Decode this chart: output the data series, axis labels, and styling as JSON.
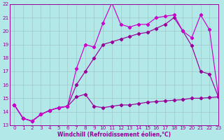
{
  "xlabel": "Windchill (Refroidissement éolien,°C)",
  "xlim": [
    -0.5,
    23
  ],
  "ylim": [
    13,
    22
  ],
  "yticks": [
    13,
    14,
    15,
    16,
    17,
    18,
    19,
    20,
    21,
    22
  ],
  "xticks": [
    0,
    1,
    2,
    3,
    4,
    5,
    6,
    7,
    8,
    9,
    10,
    11,
    12,
    13,
    14,
    15,
    16,
    17,
    18,
    19,
    20,
    21,
    22,
    23
  ],
  "bg_color": "#b2e8e8",
  "grid_color": "#a0c8c8",
  "line_color": "#990099",
  "line_color_bright": "#cc00cc",
  "x": [
    0,
    1,
    2,
    3,
    4,
    5,
    6,
    7,
    8,
    9,
    10,
    11,
    12,
    13,
    14,
    15,
    16,
    17,
    18,
    19,
    20,
    21,
    22,
    23
  ],
  "curve_top": [
    14.5,
    13.5,
    13.3,
    13.8,
    14.1,
    14.3,
    14.4,
    17.2,
    19.0,
    18.8,
    20.6,
    22.1,
    20.5,
    20.3,
    20.5,
    20.5,
    21.0,
    21.1,
    21.2,
    20.0,
    19.5,
    21.2,
    20.1,
    15.2
  ],
  "curve_mid": [
    14.5,
    13.5,
    13.3,
    13.8,
    14.1,
    14.3,
    14.4,
    16.0,
    17.0,
    18.0,
    19.0,
    19.2,
    19.4,
    19.6,
    19.8,
    19.9,
    20.2,
    20.5,
    21.0,
    20.0,
    18.9,
    17.0,
    16.8,
    15.1
  ],
  "curve_bot": [
    14.5,
    13.5,
    13.3,
    13.8,
    14.1,
    14.3,
    14.4,
    15.1,
    15.3,
    14.4,
    14.3,
    14.4,
    14.5,
    14.5,
    14.6,
    14.7,
    14.75,
    14.8,
    14.85,
    14.9,
    15.0,
    15.0,
    15.05,
    15.1
  ],
  "marker": "D",
  "marker_size": 2.2,
  "linewidth": 0.85
}
